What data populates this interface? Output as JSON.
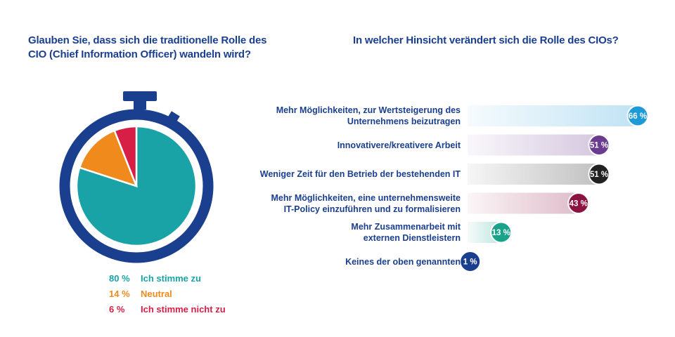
{
  "left": {
    "title": "Glauben Sie, dass sich die traditionelle Rolle des CIO (Chief Information Officer) wandeln wird?"
  },
  "right": {
    "title": "In welcher Hinsicht verändert sich die Rolle des CIOs?"
  },
  "colors": {
    "title": "#1b3f8f",
    "ring": "#1b3f8f",
    "teal": "#1aa3a7",
    "orange": "#f08a1c",
    "red": "#d71f45"
  },
  "chart_data": [
    {
      "type": "pie",
      "title": "Glauben Sie, dass sich die traditionelle Rolle des CIO (Chief Information Officer) wandeln wird?",
      "slices": [
        {
          "label": "Ich stimme zu",
          "value": 80,
          "display": "80 %",
          "color": "#1aa3a7"
        },
        {
          "label": "Neutral",
          "value": 14,
          "display": "14 %",
          "color": "#f08a1c"
        },
        {
          "label": "Ich stimme nicht zu",
          "value": 6,
          "display": "6 %",
          "color": "#d71f45"
        }
      ]
    },
    {
      "type": "bar",
      "title": "In welcher Hinsicht verändert sich die Rolle des CIOs?",
      "xlim": [
        0,
        66
      ],
      "bars": [
        {
          "label_lines": [
            "Mehr Möglichkeiten, zur Wertsteigerung des",
            "Unternehmens beizutragen"
          ],
          "value": 66,
          "display": "66 %",
          "color": "#1e9ad6"
        },
        {
          "label_lines": [
            "Innovativere/kreativere Arbeit"
          ],
          "value": 51,
          "display": "51 %",
          "color": "#6a3b8e"
        },
        {
          "label_lines": [
            "Weniger Zeit für den Betrieb der bestehenden IT"
          ],
          "value": 51,
          "display": "51 %",
          "color": "#222222"
        },
        {
          "label_lines": [
            "Mehr Möglichkeiten, eine unternehmensweite",
            "IT-Policy einzuführen und zu formalisieren"
          ],
          "value": 43,
          "display": "43 %",
          "color": "#8c1240"
        },
        {
          "label_lines": [
            "Mehr Zusammenarbeit mit",
            "externen Dienstleistern"
          ],
          "value": 13,
          "display": "13 %",
          "color": "#1aa38a"
        },
        {
          "label_lines": [
            "Keines der oben genannten"
          ],
          "value": 1,
          "display": "1 %",
          "color": "#1b3f8f"
        }
      ]
    }
  ]
}
